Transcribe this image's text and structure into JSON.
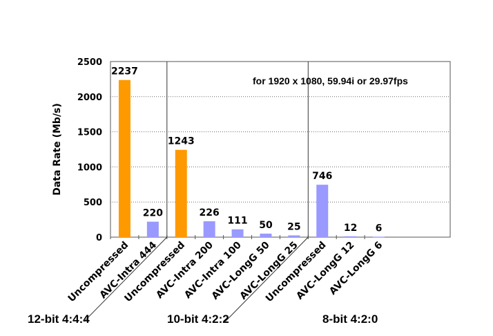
{
  "chart_data": {
    "type": "bar",
    "ylabel": "Data Rate (Mb/s)",
    "ylim": [
      0,
      2500
    ],
    "yticks": [
      0,
      500,
      1000,
      1500,
      2000,
      2500
    ],
    "grid": true,
    "annotation": "for  1920 x 1080, 59.94i or 29.97fps",
    "colors": {
      "uncompressed": "#ff9900",
      "compressed": "#9999ff"
    },
    "groups": [
      {
        "label": "12-bit 4:4:4",
        "bars": [
          {
            "category": "Uncompressed",
            "value": 2237,
            "color": "#ff9900"
          },
          {
            "category": "AVC-Intra 444",
            "value": 220,
            "color": "#9999ff"
          }
        ]
      },
      {
        "label": "10-bit 4:2:2",
        "bars": [
          {
            "category": "Uncompressed",
            "value": 1243,
            "color": "#ff9900"
          },
          {
            "category": "AVC-Intra 200",
            "value": 226,
            "color": "#9999ff"
          },
          {
            "category": "AVC-Intra 100",
            "value": 111,
            "color": "#9999ff"
          },
          {
            "category": "AVC-LongG 50",
            "value": 50,
            "color": "#9999ff"
          },
          {
            "category": "AVC-LongG 25",
            "value": 25,
            "color": "#9999ff"
          }
        ]
      },
      {
        "label": "8-bit 4:2:0",
        "bars": [
          {
            "category": "Uncompressed",
            "value": 746,
            "color": "#9999ff"
          },
          {
            "category": "AVC-LongG 12",
            "value": 12,
            "color": "#9999ff"
          },
          {
            "category": "AVC-LongG 6",
            "value": 6,
            "color": "#9999ff"
          }
        ]
      }
    ]
  }
}
